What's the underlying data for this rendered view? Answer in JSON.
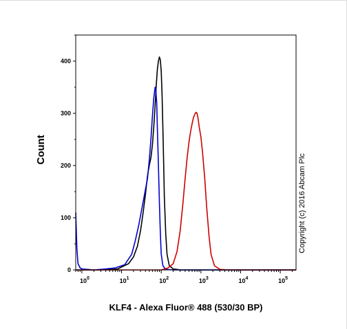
{
  "chart_data": {
    "type": "line",
    "title": "",
    "xlabel": "KLF4 - Alexa Fluor® 488 (530/30 BP)",
    "ylabel": "Count",
    "x_scale": "log",
    "xlim": [
      0.7,
      250000
    ],
    "ylim": [
      0,
      450
    ],
    "x_ticks": [
      {
        "value": 1,
        "base": "10",
        "exp": "0"
      },
      {
        "value": 10,
        "base": "10",
        "exp": "1"
      },
      {
        "value": 100,
        "base": "10",
        "exp": "2"
      },
      {
        "value": 1000,
        "base": "10",
        "exp": "3"
      },
      {
        "value": 10000,
        "base": "10",
        "exp": "4"
      },
      {
        "value": 100000,
        "base": "10",
        "exp": "5"
      }
    ],
    "y_ticks": [
      {
        "value": 0,
        "label": "0"
      },
      {
        "value": 100,
        "label": "100"
      },
      {
        "value": 200,
        "label": "200"
      },
      {
        "value": 300,
        "label": "300"
      },
      {
        "value": 400,
        "label": "400"
      }
    ],
    "series": [
      {
        "color": "#000000",
        "points": [
          [
            0.7,
            0
          ],
          [
            1,
            0
          ],
          [
            3,
            0
          ],
          [
            8,
            2
          ],
          [
            15,
            12
          ],
          [
            20,
            25
          ],
          [
            25,
            45
          ],
          [
            30,
            75
          ],
          [
            35,
            110
          ],
          [
            40,
            145
          ],
          [
            45,
            180
          ],
          [
            50,
            200
          ],
          [
            55,
            215
          ],
          [
            60,
            240
          ],
          [
            65,
            275
          ],
          [
            70,
            315
          ],
          [
            75,
            355
          ],
          [
            80,
            385
          ],
          [
            85,
            400
          ],
          [
            90,
            408
          ],
          [
            95,
            402
          ],
          [
            100,
            380
          ],
          [
            105,
            335
          ],
          [
            110,
            270
          ],
          [
            115,
            205
          ],
          [
            120,
            140
          ],
          [
            130,
            70
          ],
          [
            140,
            30
          ],
          [
            160,
            8
          ],
          [
            200,
            2
          ],
          [
            300,
            0
          ],
          [
            250000,
            0
          ]
        ]
      },
      {
        "color": "#0000cc",
        "points": [
          [
            0.7,
            110
          ],
          [
            0.75,
            40
          ],
          [
            0.8,
            12
          ],
          [
            0.9,
            4
          ],
          [
            1,
            2
          ],
          [
            2,
            0
          ],
          [
            4,
            2
          ],
          [
            7,
            4
          ],
          [
            12,
            10
          ],
          [
            18,
            30
          ],
          [
            22,
            55
          ],
          [
            27,
            85
          ],
          [
            32,
            115
          ],
          [
            38,
            145
          ],
          [
            45,
            175
          ],
          [
            50,
            210
          ],
          [
            55,
            250
          ],
          [
            60,
            295
          ],
          [
            65,
            330
          ],
          [
            70,
            350
          ],
          [
            73,
            345
          ],
          [
            77,
            320
          ],
          [
            80,
            270
          ],
          [
            85,
            200
          ],
          [
            90,
            130
          ],
          [
            95,
            70
          ],
          [
            100,
            30
          ],
          [
            110,
            8
          ],
          [
            130,
            1
          ],
          [
            200,
            0
          ],
          [
            250000,
            0
          ]
        ]
      },
      {
        "color": "#cc0000",
        "points": [
          [
            0.7,
            0
          ],
          [
            100,
            0
          ],
          [
            150,
            4
          ],
          [
            200,
            12
          ],
          [
            250,
            35
          ],
          [
            300,
            75
          ],
          [
            350,
            125
          ],
          [
            400,
            175
          ],
          [
            450,
            215
          ],
          [
            500,
            245
          ],
          [
            550,
            265
          ],
          [
            600,
            280
          ],
          [
            650,
            292
          ],
          [
            700,
            298
          ],
          [
            750,
            302
          ],
          [
            800,
            300
          ],
          [
            850,
            290
          ],
          [
            900,
            275
          ],
          [
            1000,
            255
          ],
          [
            1100,
            225
          ],
          [
            1250,
            175
          ],
          [
            1400,
            120
          ],
          [
            1600,
            65
          ],
          [
            1800,
            30
          ],
          [
            2200,
            8
          ],
          [
            3000,
            1
          ],
          [
            5000,
            0
          ],
          [
            250000,
            0
          ]
        ]
      }
    ],
    "annotations": [
      "Copyright (c) 2016 Abcam Plc"
    ]
  }
}
